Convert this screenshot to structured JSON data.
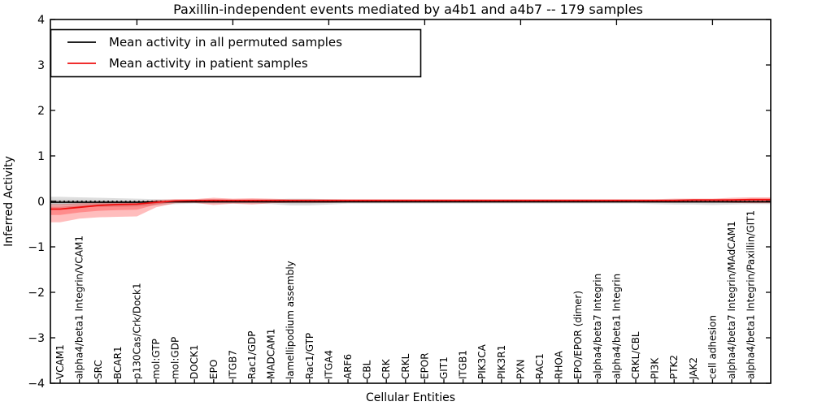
{
  "chart_data": {
    "type": "line",
    "title": "Paxillin-independent events mediated by a4b1 and a4b7 -- 179 samples",
    "xlabel": "Cellular Entities",
    "ylabel": "Inferred Activity",
    "ylim": [
      -4,
      4
    ],
    "yticks": [
      -4,
      -3,
      -2,
      -1,
      0,
      1,
      2,
      3,
      4
    ],
    "ytick_labels": [
      "−4",
      "−3",
      "−2",
      "−1",
      "0",
      "1",
      "2",
      "3",
      "4"
    ],
    "grid": false,
    "legend_position": "upper left",
    "zero_line": 0,
    "categories": [
      "VCAM1",
      "alpha4/beta1 Integrin/VCAM1",
      "SRC",
      "BCAR1",
      "p130Cas/Crk/Dock1",
      "mol:GTP",
      "mol:GDP",
      "DOCK1",
      "EPO",
      "ITGB7",
      "Rac1/GDP",
      "MADCAM1",
      "lamellipodium assembly",
      "Rac1/GTP",
      "ITGA4",
      "ARF6",
      "CBL",
      "CRK",
      "CRKL",
      "EPOR",
      "GIT1",
      "ITGB1",
      "PIK3CA",
      "PIK3R1",
      "PXN",
      "RAC1",
      "RHOA",
      "EPO/EPOR (dimer)",
      "alpha4/beta7 Integrin",
      "alpha4/beta1 Integrin",
      "CRKL/CBL",
      "PI3K",
      "PTK2",
      "JAK2",
      "cell adhesion",
      "alpha4/beta7 Integrin/MAdCAM1",
      "alpha4/beta1 Integrin/Paxillin/GIT1"
    ],
    "series": [
      {
        "name": "Mean activity in all permuted samples",
        "color": "#000000",
        "band_color": "rgba(0,0,0,0.13)",
        "mean": [
          -0.02,
          -0.02,
          -0.02,
          -0.02,
          -0.02,
          -0.01,
          -0.01,
          -0.01,
          -0.01,
          -0.01,
          -0.01,
          -0.01,
          -0.01,
          -0.01,
          -0.01,
          -0.01,
          -0.01,
          -0.01,
          -0.01,
          -0.01,
          -0.01,
          -0.01,
          -0.01,
          -0.01,
          -0.01,
          -0.01,
          -0.01,
          -0.01,
          -0.01,
          -0.01,
          -0.01,
          -0.01,
          -0.01,
          -0.01,
          -0.01,
          -0.01,
          -0.01
        ],
        "band_low": [
          -0.14,
          -0.13,
          -0.12,
          -0.12,
          -0.11,
          -0.09,
          -0.06,
          -0.05,
          -0.05,
          -0.05,
          -0.05,
          -0.06,
          -0.09,
          -0.09,
          -0.07,
          -0.05,
          -0.05,
          -0.05,
          -0.05,
          -0.05,
          -0.05,
          -0.05,
          -0.05,
          -0.05,
          -0.05,
          -0.05,
          -0.05,
          -0.05,
          -0.05,
          -0.05,
          -0.05,
          -0.06,
          -0.07,
          -0.07,
          -0.08,
          -0.07,
          -0.06
        ],
        "band_high": [
          0.1,
          0.09,
          0.08,
          0.07,
          0.06,
          0.05,
          0.04,
          0.04,
          0.05,
          0.04,
          0.04,
          0.05,
          0.06,
          0.06,
          0.05,
          0.04,
          0.04,
          0.04,
          0.04,
          0.04,
          0.04,
          0.04,
          0.04,
          0.04,
          0.04,
          0.04,
          0.04,
          0.04,
          0.04,
          0.04,
          0.04,
          0.04,
          0.05,
          0.05,
          0.05,
          0.05,
          0.05
        ]
      },
      {
        "name": "Mean activity in patient samples",
        "color": "#ee1111",
        "band_color": "rgba(255,0,0,0.26)",
        "mean": [
          -0.17,
          -0.13,
          -0.09,
          -0.07,
          -0.06,
          -0.02,
          0.01,
          0.02,
          0.02,
          0.02,
          0.02,
          0.02,
          0.02,
          0.02,
          0.02,
          0.02,
          0.02,
          0.02,
          0.02,
          0.02,
          0.02,
          0.02,
          0.02,
          0.02,
          0.02,
          0.02,
          0.02,
          0.02,
          0.02,
          0.02,
          0.02,
          0.02,
          0.02,
          0.03,
          0.03,
          0.03,
          0.04
        ],
        "band_low": [
          -0.46,
          -0.38,
          -0.35,
          -0.34,
          -0.33,
          -0.13,
          -0.04,
          -0.03,
          -0.08,
          -0.05,
          -0.07,
          -0.04,
          -0.03,
          -0.03,
          -0.03,
          -0.02,
          -0.02,
          -0.02,
          -0.02,
          -0.02,
          -0.02,
          -0.02,
          -0.02,
          -0.02,
          -0.02,
          -0.02,
          -0.02,
          -0.02,
          -0.02,
          -0.02,
          -0.02,
          -0.02,
          -0.02,
          -0.02,
          -0.02,
          -0.03,
          -0.04
        ],
        "band_high": [
          -0.06,
          -0.04,
          -0.03,
          -0.02,
          -0.02,
          0.03,
          0.05,
          0.05,
          0.08,
          0.06,
          0.07,
          0.06,
          0.05,
          0.05,
          0.05,
          0.05,
          0.05,
          0.05,
          0.05,
          0.05,
          0.05,
          0.05,
          0.05,
          0.05,
          0.05,
          0.05,
          0.05,
          0.05,
          0.05,
          0.05,
          0.05,
          0.05,
          0.06,
          0.06,
          0.06,
          0.08,
          0.09
        ]
      }
    ]
  }
}
